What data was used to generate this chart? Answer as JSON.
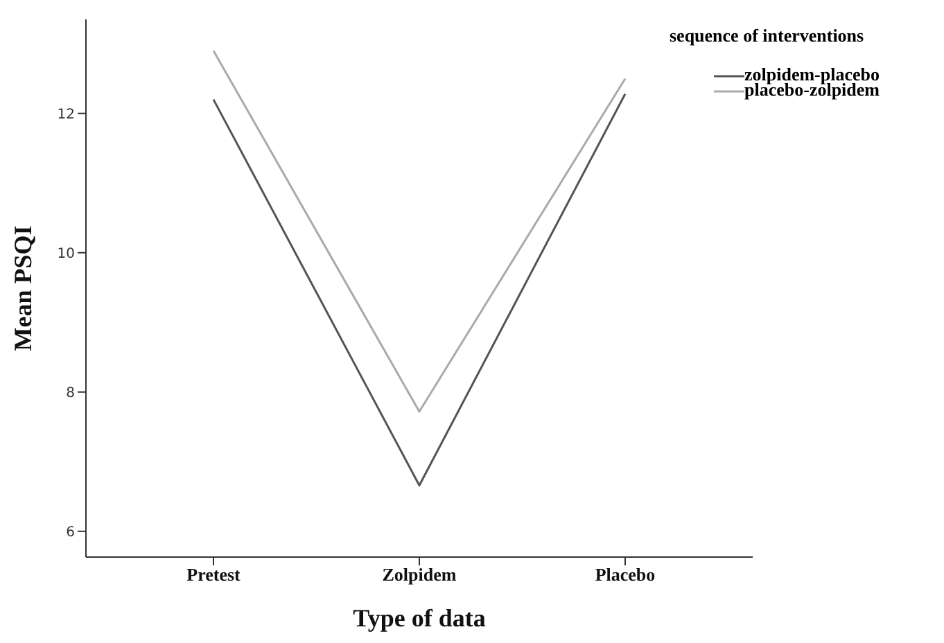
{
  "chart_data": {
    "type": "line",
    "xlabel": "Type of data",
    "ylabel": "Mean PSQI",
    "legend_title": "sequence of interventions",
    "legend": "top right",
    "grid": false,
    "marker": "none",
    "line_style": "solid",
    "categories": [
      "Pretest",
      "Zolpidem",
      "Placebo"
    ],
    "ylim": [
      5.63,
      13.35
    ],
    "yticks": [
      6,
      8,
      10,
      12
    ],
    "series": [
      {
        "name": "zolpidem-placebo",
        "color": "#555555",
        "values": [
          12.2,
          6.66,
          12.28
        ]
      },
      {
        "name": "placebo-zolpidem",
        "color": "#aaaaaa",
        "values": [
          12.9,
          7.72,
          12.5
        ]
      }
    ]
  }
}
